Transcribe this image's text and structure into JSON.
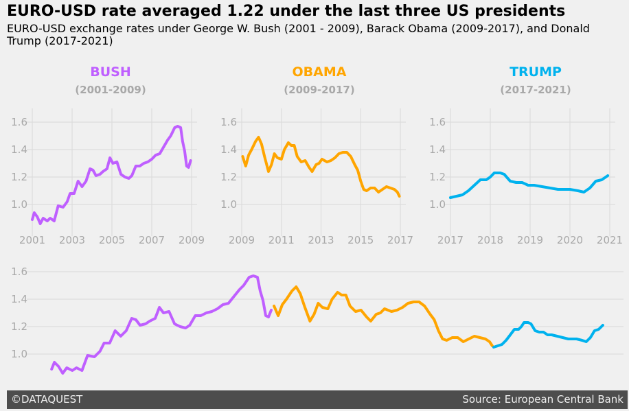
{
  "header": {
    "title": "EURO-USD rate averaged 1.22 under the last three US presidents",
    "subtitle": "EURO-USD exchange rates under George W. Bush (2001 - 2009), Barack Obama (2009-2017), and Donald Trump (2017-2021)"
  },
  "footer": {
    "left": "©DATAQUEST",
    "right": "Source: European Central Bank",
    "background": "#4d4d4d",
    "text_color": "#f0f0f0"
  },
  "colors": {
    "bush": "#bf5fff",
    "obama": "#ffa500",
    "trump": "#00b2ee",
    "grid": "#d9d9d9",
    "tick_label": "#a8a8a8",
    "background": "#f0f0f0"
  },
  "chart_data": [
    {
      "type": "line",
      "panel": "bush",
      "heading": "BUSH",
      "period": "(2001-2009)",
      "color": "#bf5fff",
      "xlim": [
        2001,
        2009
      ],
      "ylim": [
        0.8,
        1.7
      ],
      "xticks": [
        "2001",
        "2003",
        "2005",
        "2007",
        "2009"
      ],
      "yticks": [
        "1.0",
        "1.2",
        "1.4",
        "1.6"
      ],
      "grid": true,
      "series": [
        {
          "x": [
            2001.0,
            2001.1,
            2001.25,
            2001.4,
            2001.55,
            2001.75,
            2001.9,
            2002.1,
            2002.3,
            2002.55,
            2002.75,
            2002.9,
            2003.1,
            2003.3,
            2003.5,
            2003.7,
            2003.9,
            2004.05,
            2004.2,
            2004.4,
            2004.55,
            2004.75,
            2004.9,
            2005.05,
            2005.25,
            2005.45,
            2005.65,
            2005.85,
            2006.0,
            2006.2,
            2006.4,
            2006.6,
            2006.8,
            2007.0,
            2007.2,
            2007.4,
            2007.6,
            2007.8,
            2007.95,
            2008.15,
            2008.3,
            2008.45,
            2008.55,
            2008.65,
            2008.75,
            2008.85,
            2008.95
          ],
          "y": [
            0.89,
            0.94,
            0.91,
            0.86,
            0.9,
            0.88,
            0.9,
            0.88,
            0.99,
            0.98,
            1.02,
            1.08,
            1.08,
            1.17,
            1.13,
            1.17,
            1.26,
            1.25,
            1.21,
            1.22,
            1.24,
            1.26,
            1.34,
            1.3,
            1.31,
            1.22,
            1.2,
            1.19,
            1.21,
            1.28,
            1.28,
            1.3,
            1.31,
            1.33,
            1.36,
            1.37,
            1.42,
            1.47,
            1.5,
            1.56,
            1.57,
            1.56,
            1.46,
            1.39,
            1.28,
            1.27,
            1.32
          ]
        }
      ]
    },
    {
      "type": "line",
      "panel": "obama",
      "heading": "OBAMA",
      "period": "(2009-2017)",
      "color": "#ffa500",
      "xlim": [
        2009,
        2017
      ],
      "ylim": [
        0.8,
        1.7
      ],
      "xticks": [
        "2009",
        "2011",
        "2013",
        "2015",
        "2017"
      ],
      "yticks": [
        "1.0",
        "1.2",
        "1.4",
        "1.6"
      ],
      "grid": true,
      "series": [
        {
          "x": [
            2009.05,
            2009.2,
            2009.35,
            2009.5,
            2009.7,
            2009.85,
            2010.0,
            2010.15,
            2010.35,
            2010.5,
            2010.65,
            2010.8,
            2011.0,
            2011.15,
            2011.35,
            2011.5,
            2011.65,
            2011.8,
            2012.0,
            2012.2,
            2012.4,
            2012.55,
            2012.75,
            2012.9,
            2013.05,
            2013.3,
            2013.5,
            2013.7,
            2013.9,
            2014.1,
            2014.3,
            2014.5,
            2014.7,
            2014.85,
            2015.0,
            2015.15,
            2015.3,
            2015.5,
            2015.7,
            2015.9,
            2016.1,
            2016.3,
            2016.5,
            2016.7,
            2016.85,
            2016.95
          ],
          "y": [
            1.35,
            1.28,
            1.36,
            1.4,
            1.46,
            1.49,
            1.44,
            1.35,
            1.24,
            1.29,
            1.37,
            1.34,
            1.33,
            1.4,
            1.45,
            1.43,
            1.43,
            1.35,
            1.31,
            1.32,
            1.27,
            1.24,
            1.29,
            1.3,
            1.33,
            1.31,
            1.32,
            1.34,
            1.37,
            1.38,
            1.38,
            1.35,
            1.29,
            1.25,
            1.17,
            1.11,
            1.1,
            1.12,
            1.12,
            1.09,
            1.11,
            1.13,
            1.12,
            1.11,
            1.09,
            1.06
          ]
        }
      ]
    },
    {
      "type": "line",
      "panel": "trump",
      "heading": "TRUMP",
      "period": "(2017-2021)",
      "color": "#00b2ee",
      "xlim": [
        2017,
        2021
      ],
      "ylim": [
        0.8,
        1.7
      ],
      "xticks": [
        "2017",
        "2018",
        "2019",
        "2020",
        "2021"
      ],
      "yticks": [
        "1.0",
        "1.2",
        "1.4",
        "1.6"
      ],
      "grid": true,
      "series": [
        {
          "x": [
            2017.0,
            2017.15,
            2017.3,
            2017.45,
            2017.6,
            2017.75,
            2017.9,
            2018.0,
            2018.1,
            2018.25,
            2018.35,
            2018.5,
            2018.65,
            2018.8,
            2018.95,
            2019.1,
            2019.3,
            2019.5,
            2019.7,
            2019.85,
            2020.0,
            2020.2,
            2020.35,
            2020.5,
            2020.65,
            2020.8,
            2020.95
          ],
          "y": [
            1.05,
            1.06,
            1.07,
            1.1,
            1.14,
            1.18,
            1.18,
            1.2,
            1.23,
            1.23,
            1.22,
            1.17,
            1.16,
            1.16,
            1.14,
            1.14,
            1.13,
            1.12,
            1.11,
            1.11,
            1.11,
            1.1,
            1.09,
            1.12,
            1.17,
            1.18,
            1.21
          ]
        }
      ]
    },
    {
      "type": "line",
      "panel": "combined",
      "xlim": [
        2000.3,
        2021.5
      ],
      "ylim": [
        0.8,
        1.7
      ],
      "yticks": [
        "1.0",
        "1.2",
        "1.4",
        "1.6"
      ],
      "grid": true,
      "series_refs": [
        "bush",
        "obama",
        "trump"
      ]
    }
  ]
}
